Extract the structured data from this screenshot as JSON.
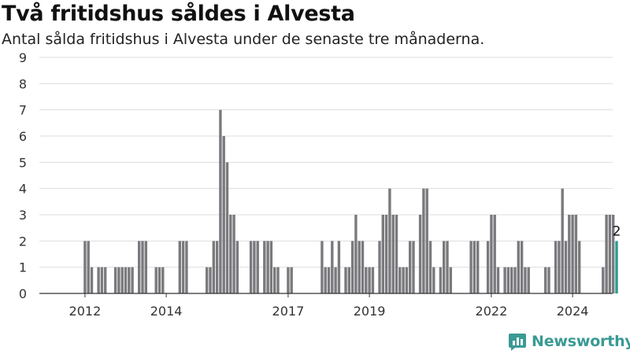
{
  "title": "Två fritidshus såldes i Alvesta",
  "subtitle": "Antal sålda fritidshus i Alvesta under de senaste tre månaderna.",
  "brand": "Newsworthy",
  "colors": {
    "bar": "#7a7a7e",
    "highlight": "#2a9d8f",
    "grid": "#dddddd",
    "axis": "#333333",
    "brand": "#3a9a94"
  },
  "chart_data": {
    "type": "bar",
    "title": "",
    "xlabel": "",
    "ylabel": "",
    "ylim": [
      0,
      9
    ],
    "yticks": [
      0,
      1,
      2,
      3,
      4,
      5,
      6,
      7,
      8,
      9
    ],
    "x_tick_labels": [
      {
        "label": "2012",
        "index": 8
      },
      {
        "label": "2014",
        "index": 32
      },
      {
        "label": "2017",
        "index": 68
      },
      {
        "label": "2019",
        "index": 92
      },
      {
        "label": "2022",
        "index": 128
      },
      {
        "label": "2024",
        "index": 152
      }
    ],
    "grid": true,
    "highlight_label": "2",
    "values": [
      0,
      0,
      0,
      0,
      0,
      0,
      0,
      0,
      2,
      2,
      1,
      0,
      1,
      1,
      1,
      0,
      0,
      1,
      1,
      1,
      1,
      1,
      1,
      0,
      2,
      2,
      2,
      0,
      0,
      1,
      1,
      1,
      0,
      0,
      0,
      0,
      2,
      2,
      2,
      0,
      0,
      0,
      0,
      0,
      1,
      1,
      2,
      2,
      7,
      6,
      5,
      3,
      3,
      2,
      0,
      0,
      0,
      2,
      2,
      2,
      0,
      2,
      2,
      2,
      1,
      1,
      0,
      0,
      1,
      1,
      0,
      0,
      0,
      0,
      0,
      0,
      0,
      0,
      2,
      1,
      1,
      2,
      1,
      2,
      0,
      1,
      1,
      2,
      3,
      2,
      2,
      1,
      1,
      1,
      0,
      2,
      3,
      3,
      4,
      3,
      3,
      1,
      1,
      1,
      2,
      2,
      0,
      3,
      4,
      4,
      2,
      1,
      0,
      1,
      2,
      2,
      1,
      0,
      0,
      0,
      0,
      0,
      2,
      2,
      2,
      0,
      0,
      2,
      3,
      3,
      1,
      0,
      1,
      1,
      1,
      1,
      2,
      2,
      1,
      1,
      0,
      0,
      0,
      0,
      1,
      1,
      0,
      2,
      2,
      4,
      2,
      3,
      3,
      3,
      2,
      0,
      0,
      0,
      0,
      0,
      0,
      1,
      3,
      3,
      3,
      2
    ]
  }
}
